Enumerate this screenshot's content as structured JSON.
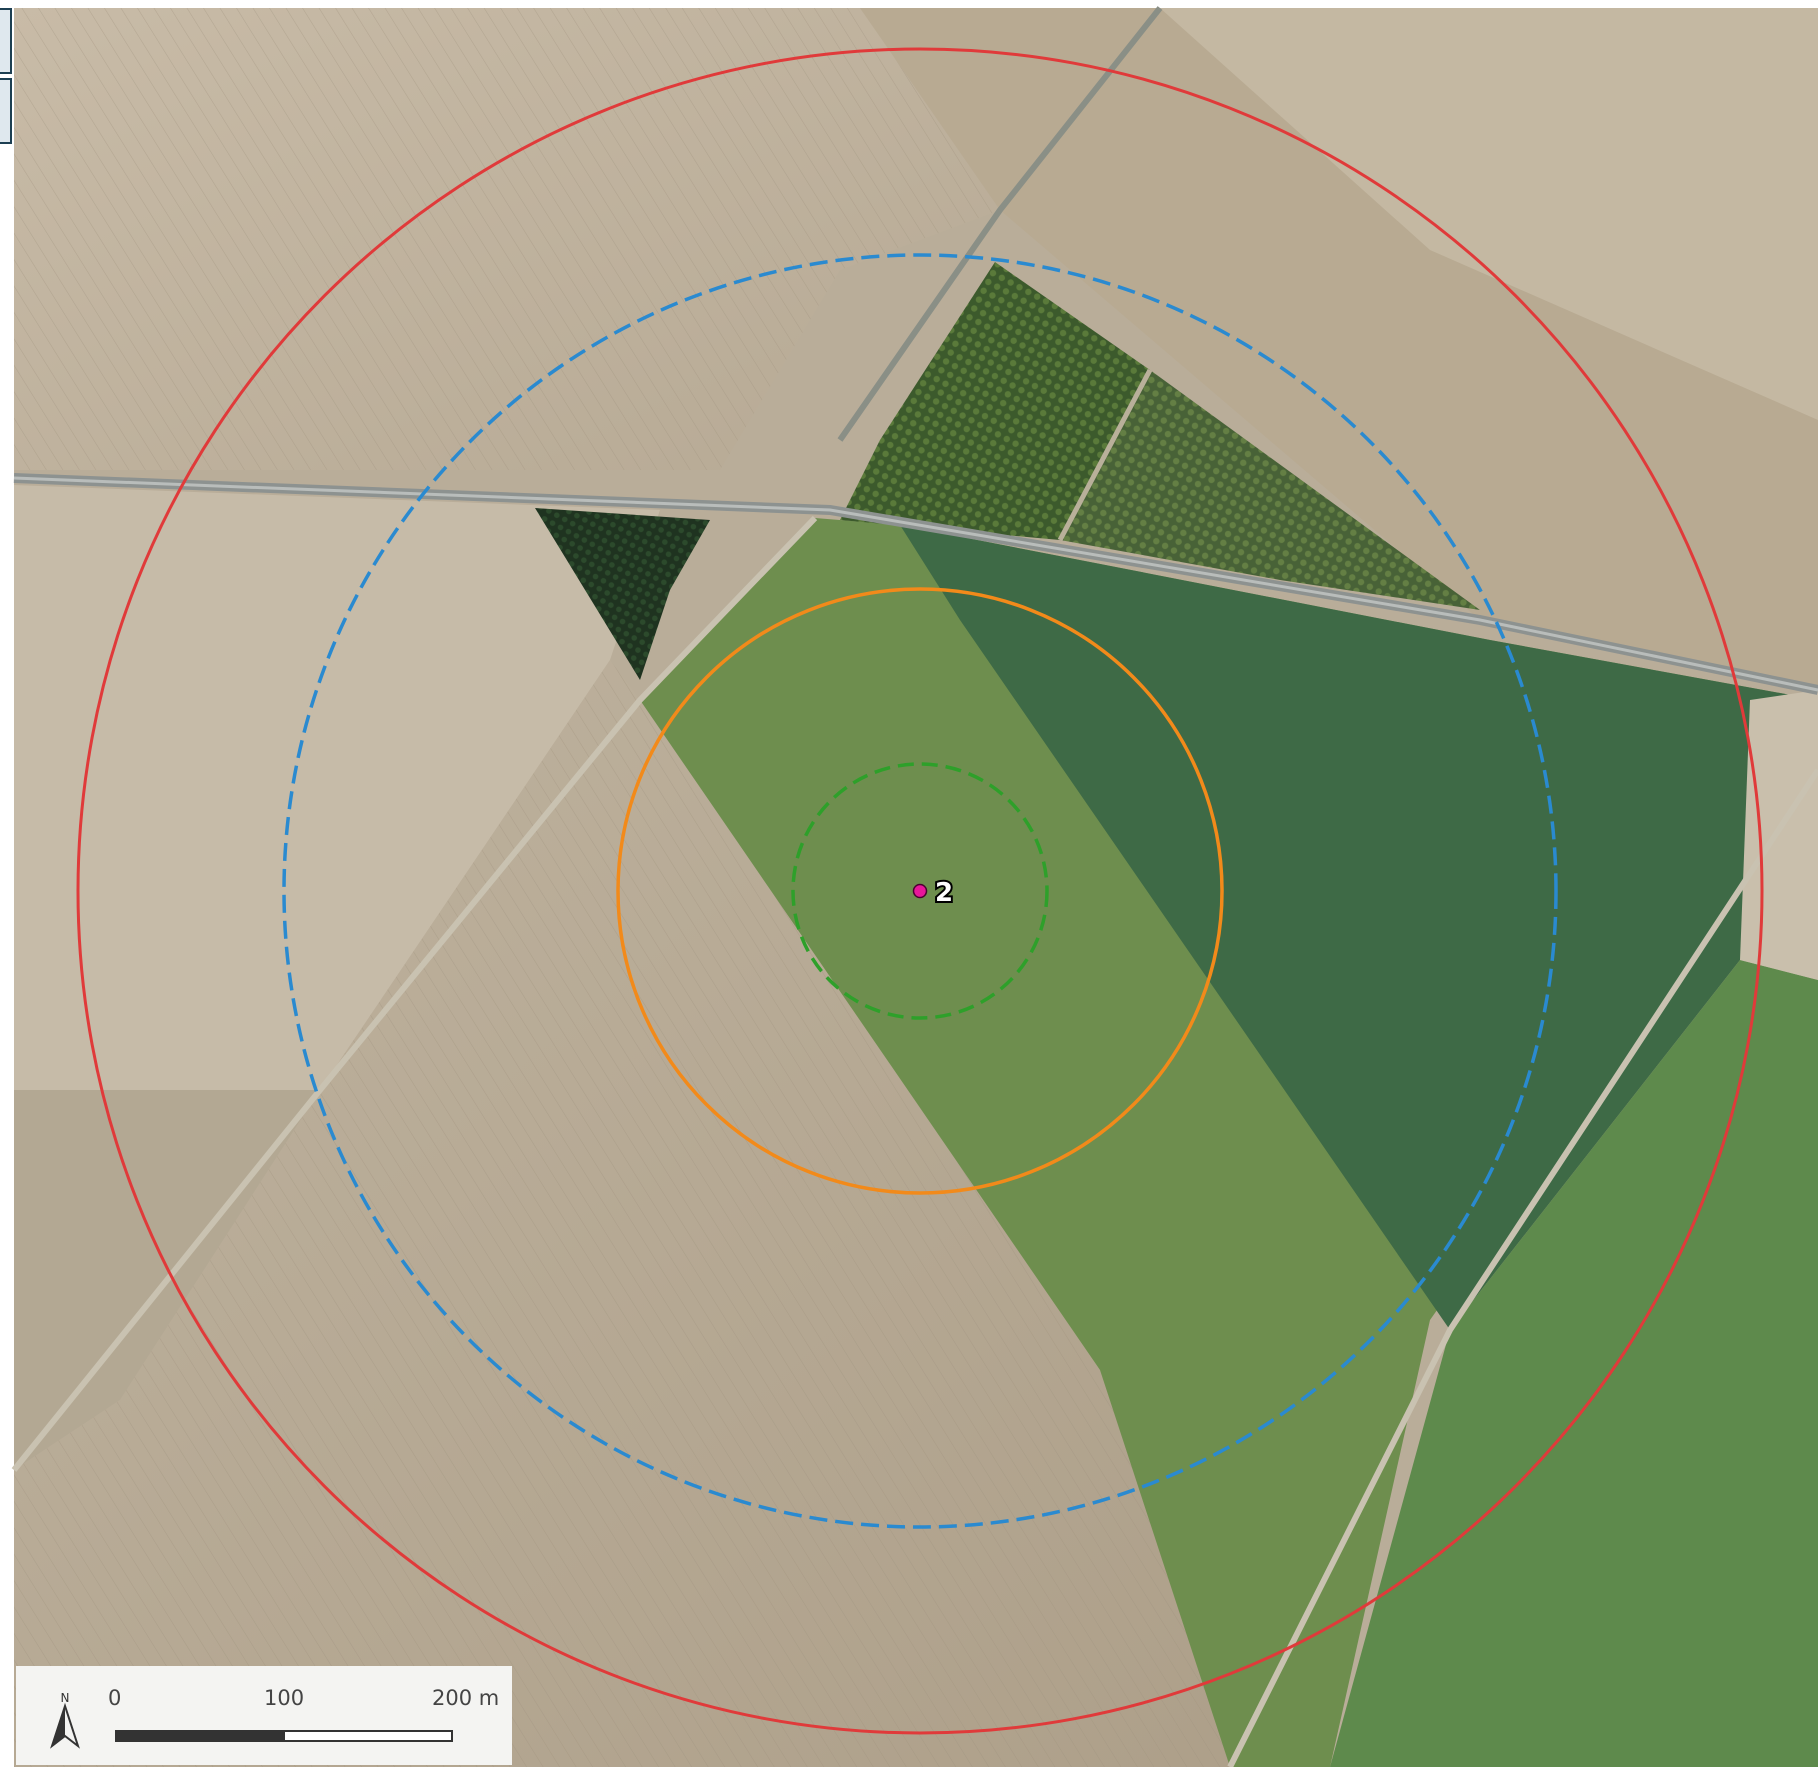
{
  "map": {
    "point": {
      "label": "2",
      "color": "#e8179a"
    },
    "buffers": [
      {
        "name": "buffer-small",
        "color": "#2ea02a",
        "style": "dashed"
      },
      {
        "name": "buffer-medium",
        "color": "#f28a1a",
        "style": "solid"
      },
      {
        "name": "buffer-large",
        "color": "#2a8ad0",
        "style": "dashed"
      },
      {
        "name": "buffer-outer",
        "color": "#e03a3a",
        "style": "solid"
      }
    ]
  },
  "scalebar": {
    "tick_0": "0",
    "tick_1": "100",
    "tick_2": "200 m"
  },
  "north_arrow": {
    "label": "N"
  }
}
